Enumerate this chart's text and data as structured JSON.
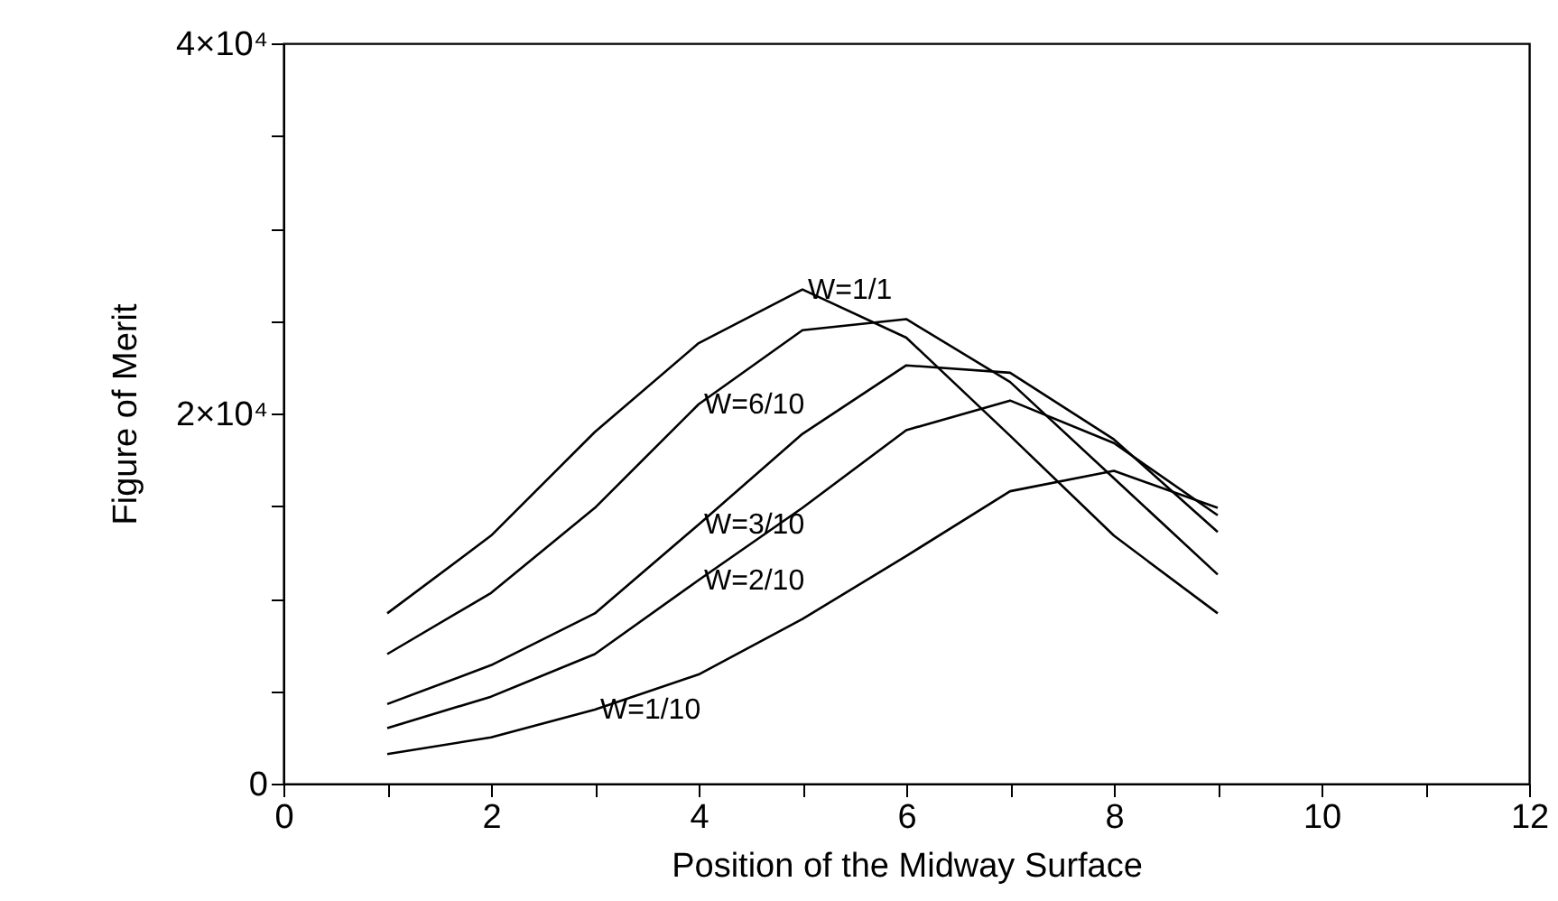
{
  "chart_data": {
    "type": "line",
    "xlabel": "Position of the Midway Surface",
    "ylabel": "Figure of Merit",
    "x": [
      1,
      2,
      3,
      4,
      5,
      6,
      7,
      8,
      9
    ],
    "series": [
      {
        "color": "#000000",
        "values": [
          9200,
          13400,
          19000,
          23800,
          26700,
          24100,
          18800,
          13400,
          9200
        ]
      },
      {
        "color": "#000000",
        "values": [
          7000,
          10300,
          14900,
          20500,
          24500,
          25100,
          21700,
          16500,
          11300
        ]
      },
      {
        "color": "#000000",
        "values": [
          4300,
          6400,
          9200,
          14000,
          18900,
          22600,
          22200,
          18600,
          13600
        ]
      },
      {
        "color": "#000000",
        "values": [
          3000,
          4700,
          7000,
          11000,
          14900,
          19100,
          20700,
          18400,
          14500
        ]
      },
      {
        "color": "#000000",
        "values": [
          1600,
          2500,
          4000,
          5900,
          8900,
          12300,
          15800,
          16900,
          14900
        ]
      }
    ],
    "annotations": [
      {
        "text": "W=1/1",
        "x": 5,
        "y": 26700
      },
      {
        "text": "W=6/10",
        "x": 4,
        "y": 20500
      },
      {
        "text": "W=3/10",
        "x": 4,
        "y": 14000
      },
      {
        "text": "W=2/10",
        "x": 4,
        "y": 11000
      },
      {
        "text": "W=1/10",
        "x": 3,
        "y": 4000
      }
    ],
    "xlim": [
      0,
      12
    ],
    "xticks": [
      0,
      {
        "value": 1,
        "label": null
      },
      2,
      {
        "value": 3,
        "label": null
      },
      4,
      {
        "value": 5,
        "label": null
      },
      6,
      {
        "value": 7,
        "label": null
      },
      8,
      {
        "value": 9,
        "label": null
      },
      10,
      {
        "value": 11,
        "label": null
      },
      12
    ],
    "ylim": [
      0,
      40000
    ],
    "yticks": [
      {
        "value": 0,
        "label": "0"
      },
      {
        "value": 5000,
        "label": null
      },
      {
        "value": 10000,
        "label": null
      },
      {
        "value": 15000,
        "label": null
      },
      {
        "value": 20000,
        "label": "2×10⁴"
      },
      {
        "value": 25000,
        "label": null
      },
      {
        "value": 30000,
        "label": null
      },
      {
        "value": 35000,
        "label": null
      },
      {
        "value": 40000,
        "label": "4×10⁴"
      }
    ],
    "grid": false,
    "marker": "none",
    "line_style": "solid"
  }
}
